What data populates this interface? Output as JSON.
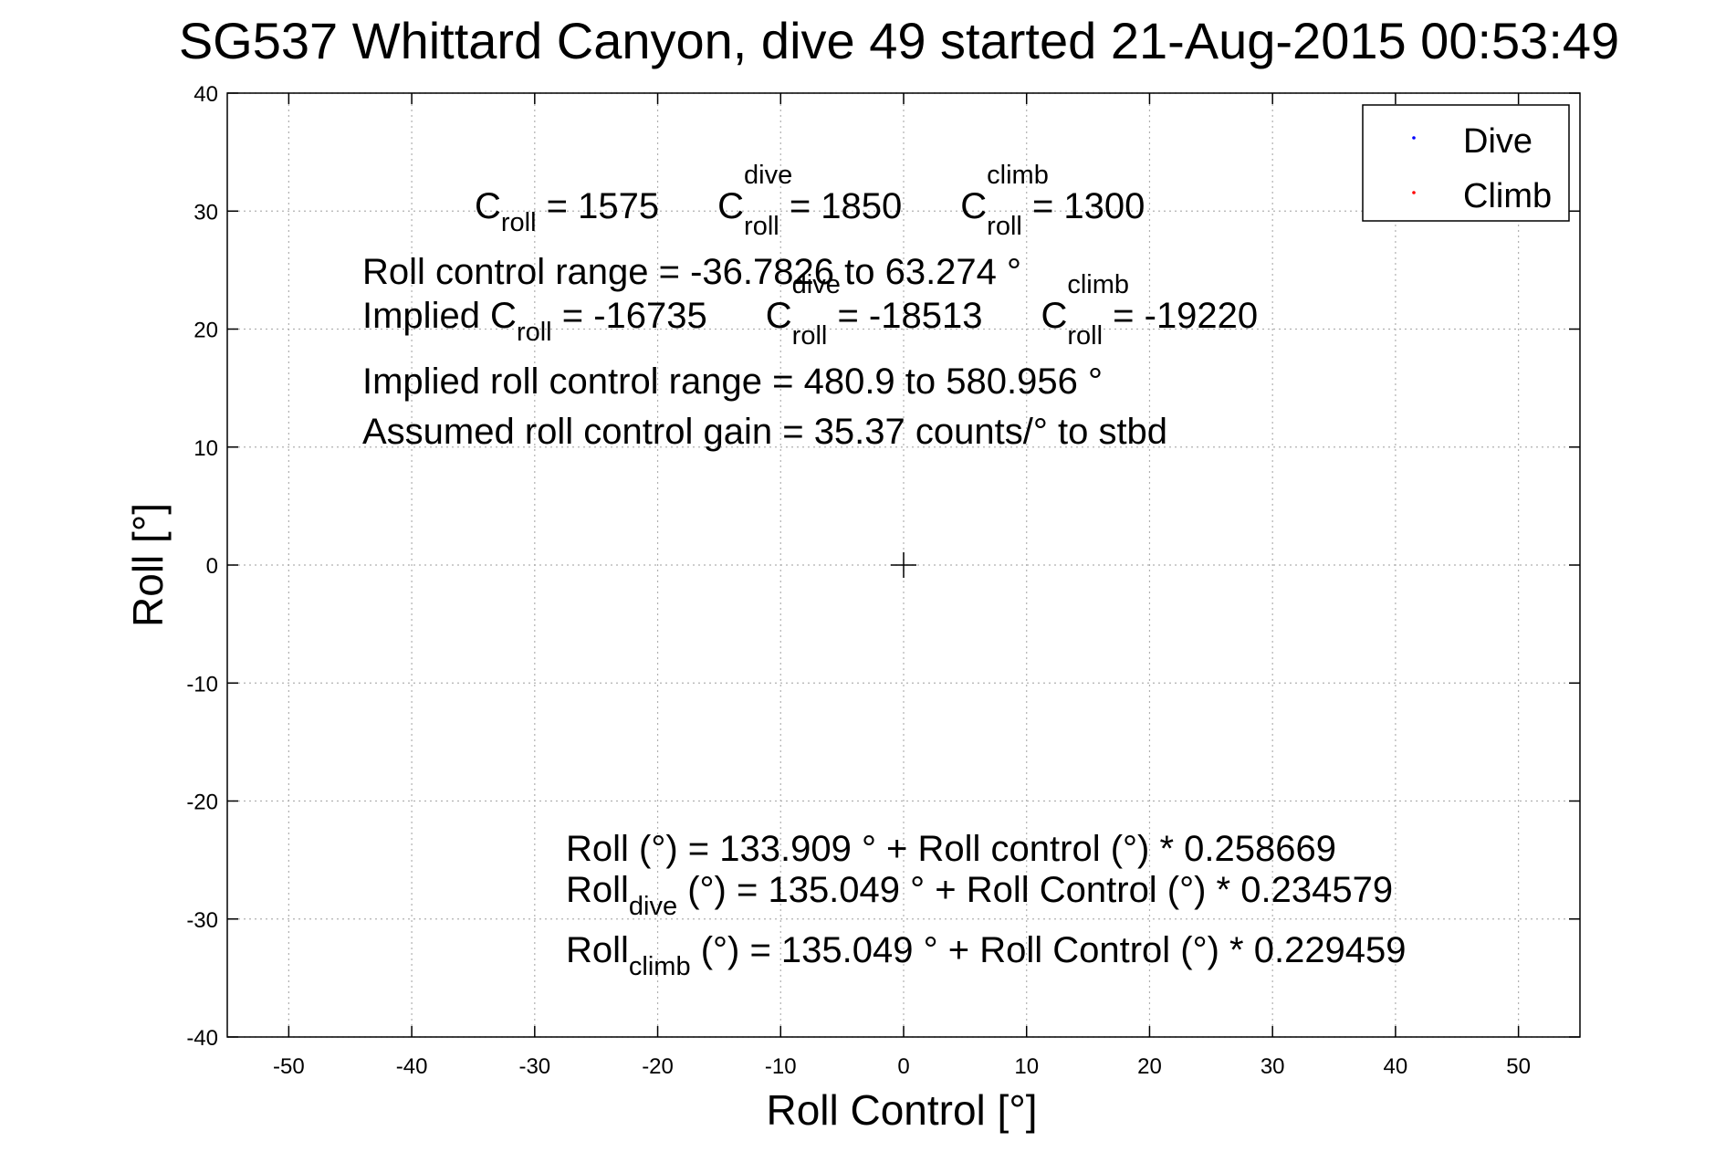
{
  "chart_data": {
    "type": "scatter",
    "title": "SG537 Whittard Canyon, dive 49 started 21-Aug-2015 00:53:49",
    "xlabel": "Roll Control [°]",
    "ylabel": "Roll [°]",
    "xlim": [
      -55,
      55
    ],
    "ylim": [
      -40,
      40
    ],
    "xticks": [
      -50,
      -40,
      -30,
      -20,
      -10,
      0,
      10,
      20,
      30,
      40,
      50
    ],
    "yticks": [
      40,
      30,
      20,
      10,
      0,
      -10,
      -20,
      -30,
      -40
    ],
    "grid": true,
    "legend_position": "top-right",
    "series": [
      {
        "name": "Dive",
        "color": "#0000ff",
        "marker": "point",
        "points": []
      },
      {
        "name": "Climb",
        "color": "#ff0000",
        "marker": "point",
        "points": []
      }
    ],
    "origin_marker": {
      "x": 0,
      "y": 0
    },
    "annotations": {
      "line1": {
        "a_label": "C",
        "a_sub": "roll",
        "a_value": " = 1575",
        "b_label": "C",
        "b_sup": "dive",
        "b_sub": "roll",
        "b_value": " = 1850",
        "c_label": "C",
        "c_sup": "climb",
        "c_sub": "roll",
        "c_value": " = 1300"
      },
      "line2": "Roll control range = -36.7826 to 63.274 °",
      "line3": {
        "a_label": "Implied C",
        "a_sub": "roll",
        "a_value": " = -16735",
        "b_label": "C",
        "b_sup": "dive",
        "b_sub": "roll",
        "b_value": " = -18513",
        "c_label": "C",
        "c_sup": "climb",
        "c_sub": "roll",
        "c_value": " = -19220"
      },
      "line4": "Implied roll control range = 480.9 to 580.956 °",
      "line5": "Assumed roll control gain = 35.37 counts/° to stbd",
      "fit1": "Roll (°) = 133.909 ° + Roll control (°) * 0.258669",
      "fit2": {
        "label": "Roll",
        "sub": "dive",
        "rest": " (°) = 135.049 ° + Roll Control (°) * 0.234579"
      },
      "fit3": {
        "label": "Roll",
        "sub": "climb",
        "rest": " (°) = 135.049 ° + Roll Control (°) * 0.229459"
      }
    }
  }
}
